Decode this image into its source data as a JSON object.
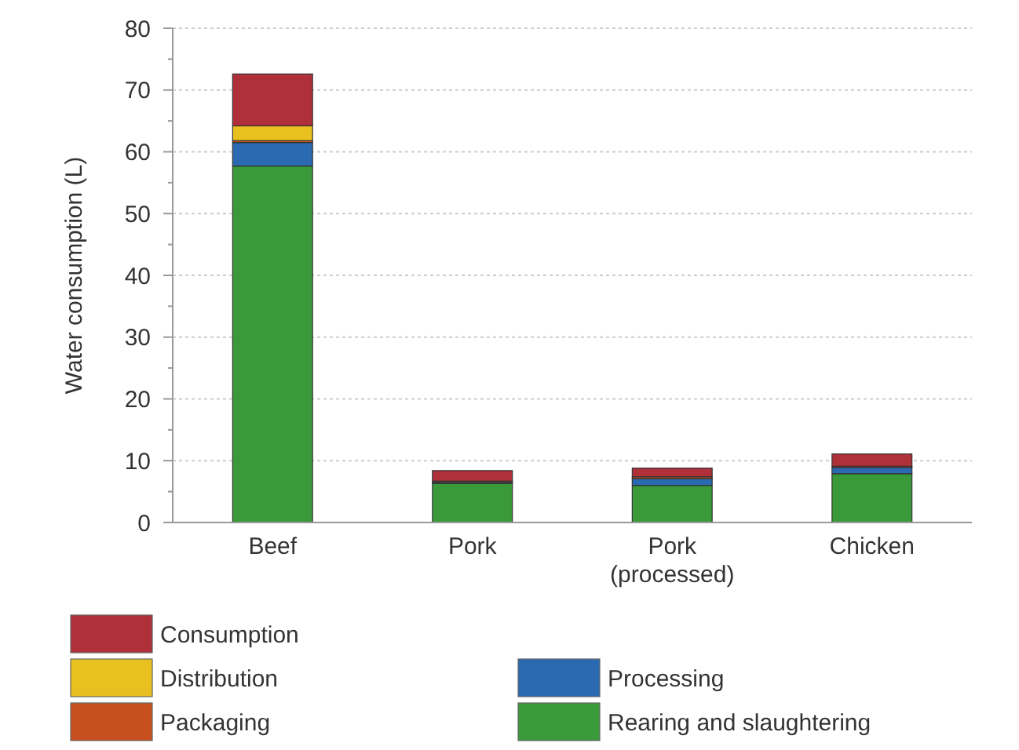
{
  "chart_data": {
    "type": "bar",
    "stacked": true,
    "ylabel": "Water consumption (L)",
    "categories": [
      "Beef",
      "Pork",
      "Pork\n(processed)",
      "Chicken"
    ],
    "series": [
      {
        "name": "Rearing and slaughtering",
        "color": "#3a9a3a",
        "values": [
          57.7,
          6.3,
          6.0,
          7.9
        ]
      },
      {
        "name": "Processing",
        "color": "#2a6ab0",
        "values": [
          3.8,
          0.2,
          1.1,
          1.0
        ]
      },
      {
        "name": "Packaging",
        "color": "#c8501e",
        "values": [
          0.3,
          0.2,
          0.3,
          0.2
        ]
      },
      {
        "name": "Distribution",
        "color": "#e8c020",
        "values": [
          2.4,
          0,
          0,
          0
        ]
      },
      {
        "name": "Consumption",
        "color": "#b0303a",
        "values": [
          8.4,
          1.7,
          1.4,
          2.0
        ]
      }
    ],
    "ylim": [
      0,
      80
    ],
    "yticks": [
      0,
      {
        "value": 5,
        "label": null
      },
      10,
      {
        "value": 15,
        "label": null
      },
      20,
      {
        "value": 25,
        "label": null
      },
      30,
      {
        "value": 35,
        "label": null
      },
      40,
      {
        "value": 45,
        "label": null
      },
      50,
      {
        "value": 55,
        "label": null
      },
      60,
      {
        "value": 65,
        "label": null
      },
      70,
      {
        "value": 75,
        "label": null
      },
      80
    ],
    "grid": "y",
    "legend": "bottom"
  }
}
